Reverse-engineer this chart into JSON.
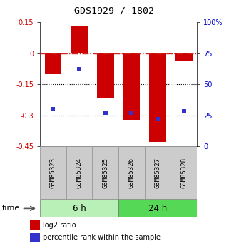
{
  "title": "GDS1929 / 1802",
  "samples": [
    "GSM85323",
    "GSM85324",
    "GSM85325",
    "GSM85326",
    "GSM85327",
    "GSM85328"
  ],
  "log2_ratio": [
    -0.1,
    0.13,
    -0.22,
    -0.32,
    -0.43,
    -0.04
  ],
  "percentile_rank": [
    30,
    62,
    27,
    27,
    22,
    28
  ],
  "groups": [
    {
      "label": "6 h",
      "color": "#b8f0b8",
      "color2": "#90e890"
    },
    {
      "label": "24 h",
      "color": "#55d855",
      "color2": "#33cc33"
    }
  ],
  "ylim_left": [
    -0.45,
    0.15
  ],
  "ylim_right": [
    0,
    100
  ],
  "yticks_left": [
    0.15,
    0.0,
    -0.15,
    -0.3,
    -0.45
  ],
  "yticks_right": [
    100,
    75,
    50,
    25,
    0
  ],
  "bar_color": "#cc0000",
  "dot_color": "#3333cc",
  "bar_width": 0.65,
  "hline_color": "#cc2222",
  "dot_color_bg": "#0000cc",
  "legend_red_label": "log2 ratio",
  "legend_blue_label": "percentile rank within the sample",
  "time_label": "time",
  "bg_color": "#ffffff",
  "box_bg": "#cccccc",
  "box_border": "#999999"
}
